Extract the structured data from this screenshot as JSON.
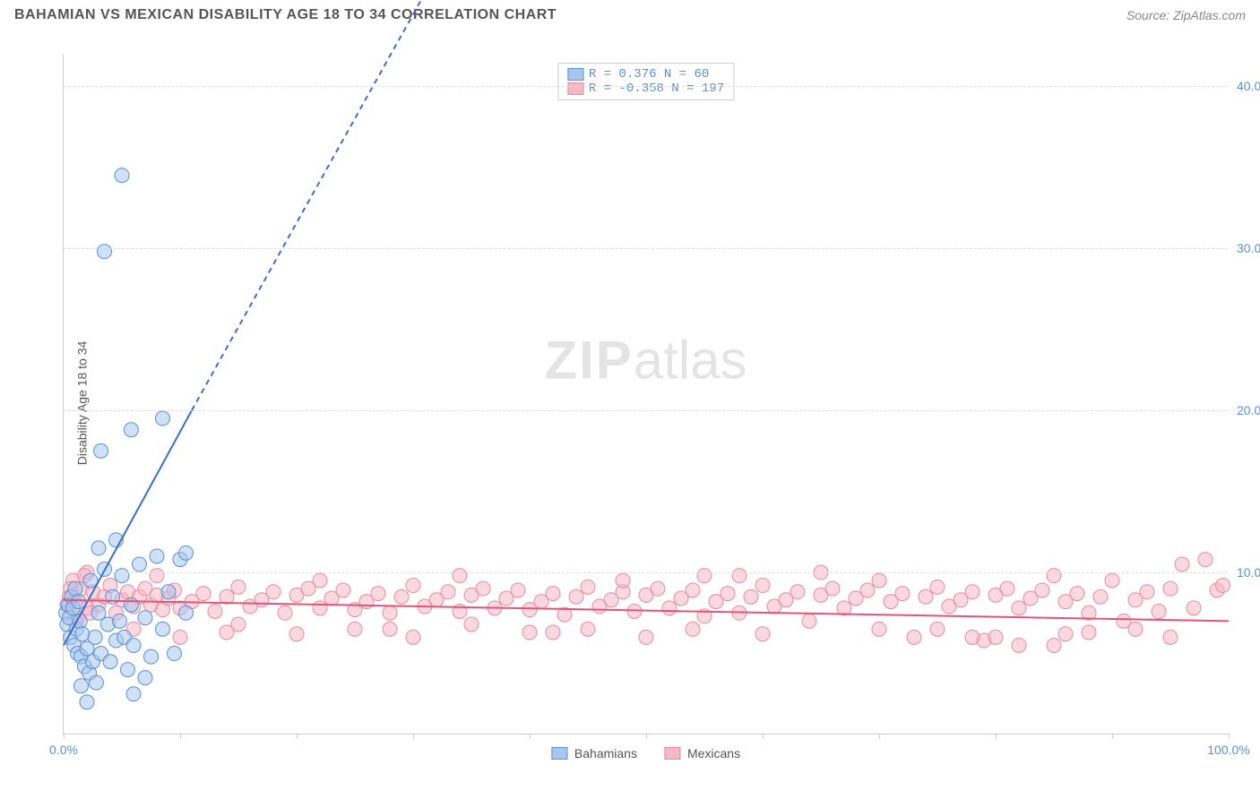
{
  "header": {
    "title": "BAHAMIAN VS MEXICAN DISABILITY AGE 18 TO 34 CORRELATION CHART",
    "source": "Source: ZipAtlas.com"
  },
  "chart": {
    "type": "scatter",
    "y_axis_label": "Disability Age 18 to 34",
    "watermark": "ZIPatlas",
    "background_color": "#ffffff",
    "grid_color": "#dddddd",
    "axis_color": "#cccccc",
    "xlim": [
      0,
      100
    ],
    "ylim": [
      0,
      42
    ],
    "x_ticks": [
      0,
      10,
      20,
      30,
      40,
      50,
      60,
      70,
      80,
      90,
      100
    ],
    "x_tick_labels_shown": {
      "0": "0.0%",
      "100": "100.0%"
    },
    "y_ticks": [
      10,
      20,
      30,
      40
    ],
    "y_tick_labels": {
      "10": "10.0%",
      "20": "20.0%",
      "30": "30.0%",
      "40": "40.0%"
    },
    "x_tick_label_color": "#5b8fd6",
    "y_tick_label_color": "#5b8fd6",
    "series": {
      "bahamians": {
        "label": "Bahamians",
        "color_fill": "#a9c7ec",
        "color_stroke": "#5b8fd6",
        "marker_radius": 8,
        "fill_opacity": 0.55,
        "R": "0.376",
        "N": "60",
        "trend": {
          "x1": 0,
          "y1": 5.5,
          "x2": 11,
          "y2": 20,
          "extend_x2": 32,
          "extend_y2": 47,
          "color": "#3a6fc7",
          "width": 2,
          "dash_extend": "6,5"
        },
        "points": [
          [
            0.2,
            7.5
          ],
          [
            0.3,
            6.8
          ],
          [
            0.4,
            8.0
          ],
          [
            0.5,
            7.2
          ],
          [
            0.6,
            6.0
          ],
          [
            0.7,
            8.5
          ],
          [
            0.8,
            7.8
          ],
          [
            0.9,
            5.5
          ],
          [
            1.0,
            9.0
          ],
          [
            1.1,
            6.5
          ],
          [
            1.2,
            5.0
          ],
          [
            1.3,
            8.2
          ],
          [
            1.4,
            7.0
          ],
          [
            1.5,
            4.8
          ],
          [
            1.6,
            6.2
          ],
          [
            1.8,
            4.2
          ],
          [
            2.0,
            5.3
          ],
          [
            2.2,
            3.8
          ],
          [
            2.3,
            9.5
          ],
          [
            2.5,
            4.5
          ],
          [
            2.7,
            6.0
          ],
          [
            2.8,
            3.2
          ],
          [
            3.0,
            7.5
          ],
          [
            3.2,
            5.0
          ],
          [
            3.5,
            10.2
          ],
          [
            3.8,
            6.8
          ],
          [
            4.0,
            4.5
          ],
          [
            4.2,
            8.5
          ],
          [
            4.5,
            5.8
          ],
          [
            4.8,
            7.0
          ],
          [
            5.0,
            9.8
          ],
          [
            5.2,
            6.0
          ],
          [
            5.5,
            4.0
          ],
          [
            5.8,
            8.0
          ],
          [
            6.0,
            5.5
          ],
          [
            6.5,
            10.5
          ],
          [
            7.0,
            7.2
          ],
          [
            7.5,
            4.8
          ],
          [
            8.0,
            11.0
          ],
          [
            8.5,
            6.5
          ],
          [
            9.0,
            8.8
          ],
          [
            9.5,
            5.0
          ],
          [
            10.0,
            10.8
          ],
          [
            10.5,
            7.5
          ],
          [
            3.0,
            11.5
          ],
          [
            4.5,
            12.0
          ],
          [
            6.0,
            2.5
          ],
          [
            2.0,
            2.0
          ],
          [
            1.5,
            3.0
          ],
          [
            7.0,
            3.5
          ],
          [
            3.5,
            29.8
          ],
          [
            5.0,
            34.5
          ],
          [
            3.2,
            17.5
          ],
          [
            5.8,
            18.8
          ],
          [
            8.5,
            19.5
          ],
          [
            10.5,
            11.2
          ]
        ]
      },
      "mexicans": {
        "label": "Mexicans",
        "color_fill": "#f5b8c7",
        "color_stroke": "#e68aa2",
        "marker_radius": 8,
        "fill_opacity": 0.55,
        "R": "-0.358",
        "N": "197",
        "trend": {
          "x1": 0,
          "y1": 8.3,
          "x2": 100,
          "y2": 7.0,
          "color": "#e55378",
          "width": 2
        },
        "points": [
          [
            0.5,
            8.5
          ],
          [
            1,
            8.2
          ],
          [
            1.5,
            9.0
          ],
          [
            2,
            7.8
          ],
          [
            2.5,
            8.8
          ],
          [
            3,
            8.0
          ],
          [
            3.5,
            8.5
          ],
          [
            4,
            9.2
          ],
          [
            4.5,
            7.5
          ],
          [
            5,
            8.3
          ],
          [
            5.5,
            8.8
          ],
          [
            6,
            7.9
          ],
          [
            6.5,
            8.5
          ],
          [
            7,
            9.0
          ],
          [
            7.5,
            8.0
          ],
          [
            8,
            8.6
          ],
          [
            8.5,
            7.7
          ],
          [
            9,
            8.4
          ],
          [
            9.5,
            8.9
          ],
          [
            10,
            7.8
          ],
          [
            11,
            8.2
          ],
          [
            12,
            8.7
          ],
          [
            13,
            7.6
          ],
          [
            14,
            8.5
          ],
          [
            15,
            9.1
          ],
          [
            16,
            7.9
          ],
          [
            17,
            8.3
          ],
          [
            18,
            8.8
          ],
          [
            19,
            7.5
          ],
          [
            20,
            8.6
          ],
          [
            21,
            9.0
          ],
          [
            22,
            7.8
          ],
          [
            23,
            8.4
          ],
          [
            24,
            8.9
          ],
          [
            25,
            7.7
          ],
          [
            26,
            8.2
          ],
          [
            27,
            8.7
          ],
          [
            28,
            7.5
          ],
          [
            29,
            8.5
          ],
          [
            30,
            9.2
          ],
          [
            31,
            7.9
          ],
          [
            32,
            8.3
          ],
          [
            33,
            8.8
          ],
          [
            34,
            7.6
          ],
          [
            35,
            8.6
          ],
          [
            36,
            9.0
          ],
          [
            37,
            7.8
          ],
          [
            38,
            8.4
          ],
          [
            39,
            8.9
          ],
          [
            40,
            7.7
          ],
          [
            41,
            8.2
          ],
          [
            42,
            8.7
          ],
          [
            43,
            7.4
          ],
          [
            44,
            8.5
          ],
          [
            45,
            9.1
          ],
          [
            46,
            7.9
          ],
          [
            47,
            8.3
          ],
          [
            48,
            8.8
          ],
          [
            49,
            7.6
          ],
          [
            50,
            8.6
          ],
          [
            51,
            9.0
          ],
          [
            52,
            7.8
          ],
          [
            53,
            8.4
          ],
          [
            54,
            8.9
          ],
          [
            55,
            7.3
          ],
          [
            56,
            8.2
          ],
          [
            57,
            8.7
          ],
          [
            58,
            7.5
          ],
          [
            59,
            8.5
          ],
          [
            60,
            9.2
          ],
          [
            61,
            7.9
          ],
          [
            62,
            8.3
          ],
          [
            63,
            8.8
          ],
          [
            64,
            7.0
          ],
          [
            65,
            8.6
          ],
          [
            66,
            9.0
          ],
          [
            67,
            7.8
          ],
          [
            68,
            8.4
          ],
          [
            69,
            8.9
          ],
          [
            70,
            6.5
          ],
          [
            71,
            8.2
          ],
          [
            72,
            8.7
          ],
          [
            73,
            6.0
          ],
          [
            74,
            8.5
          ],
          [
            75,
            9.1
          ],
          [
            76,
            7.9
          ],
          [
            77,
            8.3
          ],
          [
            78,
            8.8
          ],
          [
            79,
            5.8
          ],
          [
            80,
            8.6
          ],
          [
            81,
            9.0
          ],
          [
            82,
            7.8
          ],
          [
            83,
            8.4
          ],
          [
            84,
            8.9
          ],
          [
            85,
            5.5
          ],
          [
            86,
            8.2
          ],
          [
            87,
            8.7
          ],
          [
            88,
            7.5
          ],
          [
            89,
            8.5
          ],
          [
            90,
            9.5
          ],
          [
            91,
            7.0
          ],
          [
            92,
            8.3
          ],
          [
            93,
            8.8
          ],
          [
            94,
            7.6
          ],
          [
            95,
            9.0
          ],
          [
            96,
            10.5
          ],
          [
            97,
            7.8
          ],
          [
            98,
            10.8
          ],
          [
            99,
            8.9
          ],
          [
            99.5,
            9.2
          ],
          [
            6,
            6.5
          ],
          [
            10,
            6.0
          ],
          [
            15,
            6.8
          ],
          [
            20,
            6.2
          ],
          [
            25,
            6.5
          ],
          [
            30,
            6.0
          ],
          [
            35,
            6.8
          ],
          [
            40,
            6.3
          ],
          [
            45,
            6.5
          ],
          [
            50,
            6.0
          ],
          [
            55,
            9.8
          ],
          [
            60,
            6.2
          ],
          [
            65,
            10.0
          ],
          [
            70,
            9.5
          ],
          [
            75,
            6.5
          ],
          [
            80,
            6.0
          ],
          [
            85,
            9.8
          ],
          [
            88,
            6.3
          ],
          [
            92,
            6.5
          ],
          [
            95,
            6.0
          ],
          [
            2,
            10.0
          ],
          [
            8,
            9.8
          ],
          [
            14,
            6.3
          ],
          [
            22,
            9.5
          ],
          [
            28,
            6.5
          ],
          [
            34,
            9.8
          ],
          [
            42,
            6.3
          ],
          [
            48,
            9.5
          ],
          [
            54,
            6.5
          ],
          [
            58,
            9.8
          ],
          [
            0.8,
            9.5
          ],
          [
            1.2,
            7.2
          ],
          [
            1.8,
            9.8
          ],
          [
            2.3,
            7.5
          ],
          [
            0.3,
            8.0
          ],
          [
            0.6,
            9.0
          ],
          [
            1.0,
            7.0
          ],
          [
            78,
            6.0
          ],
          [
            82,
            5.5
          ],
          [
            86,
            6.2
          ]
        ]
      }
    },
    "legend_box": {
      "rows": [
        {
          "swatch_fill": "#a9c7ec",
          "swatch_stroke": "#5b8fd6",
          "text": "R =  0.376  N =  60",
          "text_color": "#5b8fd6"
        },
        {
          "swatch_fill": "#f5b8c7",
          "swatch_stroke": "#e68aa2",
          "text": "R = -0.358  N = 197",
          "text_color": "#5b8fd6"
        }
      ]
    },
    "bottom_legend": [
      {
        "swatch_fill": "#a9c7ec",
        "swatch_stroke": "#5b8fd6",
        "label": "Bahamians"
      },
      {
        "swatch_fill": "#f5b8c7",
        "swatch_stroke": "#e68aa2",
        "label": "Mexicans"
      }
    ]
  }
}
